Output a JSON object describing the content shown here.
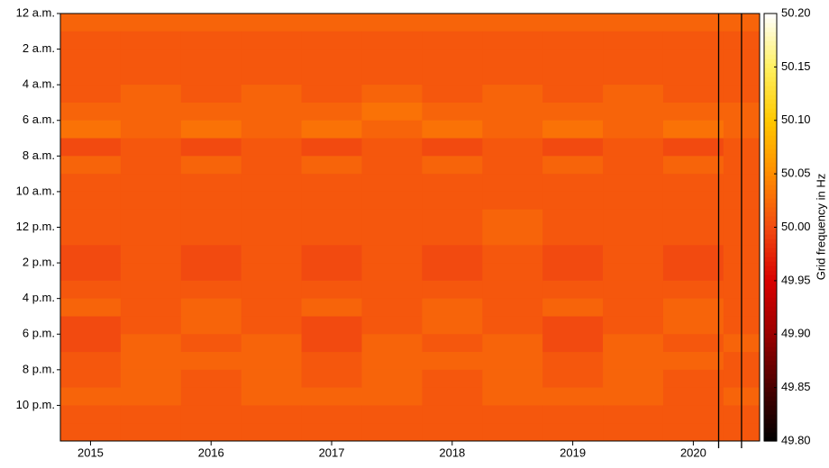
{
  "chart_data": {
    "type": "heatmap",
    "xlim": [
      2014.75,
      2020.55
    ],
    "xticks": [
      2015,
      2016,
      2017,
      2018,
      2019,
      2020
    ],
    "ylim": [
      0,
      24
    ],
    "y_inverted": true,
    "yticks": [
      {
        "value": 0,
        "label": "12 a.m."
      },
      {
        "value": 2,
        "label": "2 a.m."
      },
      {
        "value": 4,
        "label": "4 a.m."
      },
      {
        "value": 6,
        "label": "6 a.m."
      },
      {
        "value": 8,
        "label": "8 a.m."
      },
      {
        "value": 10,
        "label": "10 a.m."
      },
      {
        "value": 12,
        "label": "12 p.m."
      },
      {
        "value": 14,
        "label": "2 p.m."
      },
      {
        "value": 16,
        "label": "4 p.m."
      },
      {
        "value": 18,
        "label": "6 p.m."
      },
      {
        "value": 20,
        "label": "8 p.m."
      },
      {
        "value": 22,
        "label": "10 p.m."
      }
    ],
    "xbins": [
      2014.75,
      2015.25,
      2015.75,
      2016.25,
      2016.75,
      2017.25,
      2017.75,
      2018.25,
      2018.75,
      2019.25,
      2019.75,
      2020.25,
      2020.55
    ],
    "ybins": [
      0,
      1,
      2,
      3,
      4,
      5,
      6,
      7,
      8,
      9,
      10,
      11,
      12,
      13,
      14,
      15,
      16,
      17,
      18,
      19,
      20,
      21,
      22,
      23,
      24
    ],
    "z": [
      [
        50.02,
        50.02,
        50.02,
        50.02,
        50.02,
        50.02,
        50.02,
        50.02,
        50.02,
        50.02,
        50.02,
        50.02
      ],
      [
        50.01,
        50.01,
        50.01,
        50.01,
        50.01,
        50.01,
        50.01,
        50.01,
        50.01,
        50.01,
        50.01,
        50.01
      ],
      [
        50.01,
        50.01,
        50.01,
        50.01,
        50.01,
        50.01,
        50.01,
        50.01,
        50.01,
        50.01,
        50.01,
        50.01
      ],
      [
        50.01,
        50.01,
        50.01,
        50.01,
        50.01,
        50.01,
        50.01,
        50.01,
        50.01,
        50.01,
        50.01,
        50.01
      ],
      [
        50.01,
        50.02,
        50.01,
        50.02,
        50.01,
        50.02,
        50.01,
        50.02,
        50.01,
        50.02,
        50.01,
        50.01
      ],
      [
        50.02,
        50.02,
        50.02,
        50.02,
        50.02,
        50.03,
        50.02,
        50.02,
        50.02,
        50.02,
        50.02,
        50.02
      ],
      [
        50.03,
        50.02,
        50.03,
        50.02,
        50.03,
        50.02,
        50.03,
        50.02,
        50.03,
        50.02,
        50.03,
        50.02
      ],
      [
        50.0,
        50.01,
        50.0,
        50.01,
        50.0,
        50.01,
        50.0,
        50.01,
        50.0,
        50.01,
        50.0,
        50.01
      ],
      [
        50.02,
        50.01,
        50.02,
        50.01,
        50.02,
        50.01,
        50.02,
        50.01,
        50.02,
        50.01,
        50.02,
        50.01
      ],
      [
        50.01,
        50.01,
        50.01,
        50.01,
        50.01,
        50.01,
        50.01,
        50.01,
        50.01,
        50.01,
        50.01,
        50.01
      ],
      [
        50.01,
        50.01,
        50.01,
        50.01,
        50.01,
        50.01,
        50.01,
        50.01,
        50.01,
        50.01,
        50.01,
        50.01
      ],
      [
        50.01,
        50.01,
        50.01,
        50.01,
        50.01,
        50.01,
        50.01,
        50.02,
        50.01,
        50.01,
        50.01,
        50.01
      ],
      [
        50.01,
        50.01,
        50.01,
        50.01,
        50.01,
        50.01,
        50.01,
        50.02,
        50.01,
        50.01,
        50.01,
        50.01
      ],
      [
        50.0,
        50.01,
        50.0,
        50.01,
        50.0,
        50.01,
        50.0,
        50.01,
        50.0,
        50.01,
        50.0,
        50.01
      ],
      [
        50.0,
        50.01,
        50.0,
        50.01,
        50.0,
        50.01,
        50.0,
        50.01,
        50.0,
        50.01,
        50.0,
        50.01
      ],
      [
        50.01,
        50.01,
        50.01,
        50.01,
        50.01,
        50.01,
        50.01,
        50.01,
        50.01,
        50.01,
        50.01,
        50.01
      ],
      [
        50.02,
        50.01,
        50.02,
        50.01,
        50.02,
        50.01,
        50.02,
        50.01,
        50.02,
        50.01,
        50.02,
        50.01
      ],
      [
        50.0,
        50.01,
        50.02,
        50.01,
        50.0,
        50.01,
        50.02,
        50.01,
        50.0,
        50.01,
        50.02,
        50.01
      ],
      [
        50.0,
        50.02,
        50.01,
        50.02,
        50.0,
        50.02,
        50.01,
        50.02,
        50.0,
        50.02,
        50.01,
        50.02
      ],
      [
        50.01,
        50.02,
        50.02,
        50.02,
        50.01,
        50.02,
        50.02,
        50.02,
        50.01,
        50.02,
        50.02,
        50.01
      ],
      [
        50.01,
        50.02,
        50.01,
        50.02,
        50.01,
        50.02,
        50.01,
        50.02,
        50.01,
        50.02,
        50.01,
        50.01
      ],
      [
        50.02,
        50.02,
        50.01,
        50.02,
        50.02,
        50.02,
        50.01,
        50.02,
        50.02,
        50.02,
        50.01,
        50.02
      ],
      [
        50.01,
        50.01,
        50.01,
        50.01,
        50.01,
        50.01,
        50.01,
        50.01,
        50.01,
        50.01,
        50.01,
        50.01
      ],
      [
        50.01,
        50.01,
        50.01,
        50.01,
        50.01,
        50.01,
        50.01,
        50.01,
        50.01,
        50.01,
        50.01,
        50.01
      ]
    ],
    "clim": [
      49.8,
      50.2
    ],
    "colormap": [
      "#000000",
      "#4a0000",
      "#9a0000",
      "#d80000",
      "#f24a10",
      "#ff8c00",
      "#ffc800",
      "#fff060",
      "#ffffff"
    ],
    "cticks": [
      {
        "value": 49.8,
        "label": "49.80"
      },
      49.85,
      {
        "value": 49.9,
        "label": "49.90"
      },
      49.95,
      {
        "value": 50,
        "label": "50.00"
      },
      50.05,
      {
        "value": 50.1,
        "label": "50.10"
      },
      50.15,
      {
        "value": 50.2,
        "label": "50.20"
      }
    ],
    "colorbar_label": "Grid frequency in Hz",
    "vlines": [
      2020.21,
      2020.4
    ]
  }
}
